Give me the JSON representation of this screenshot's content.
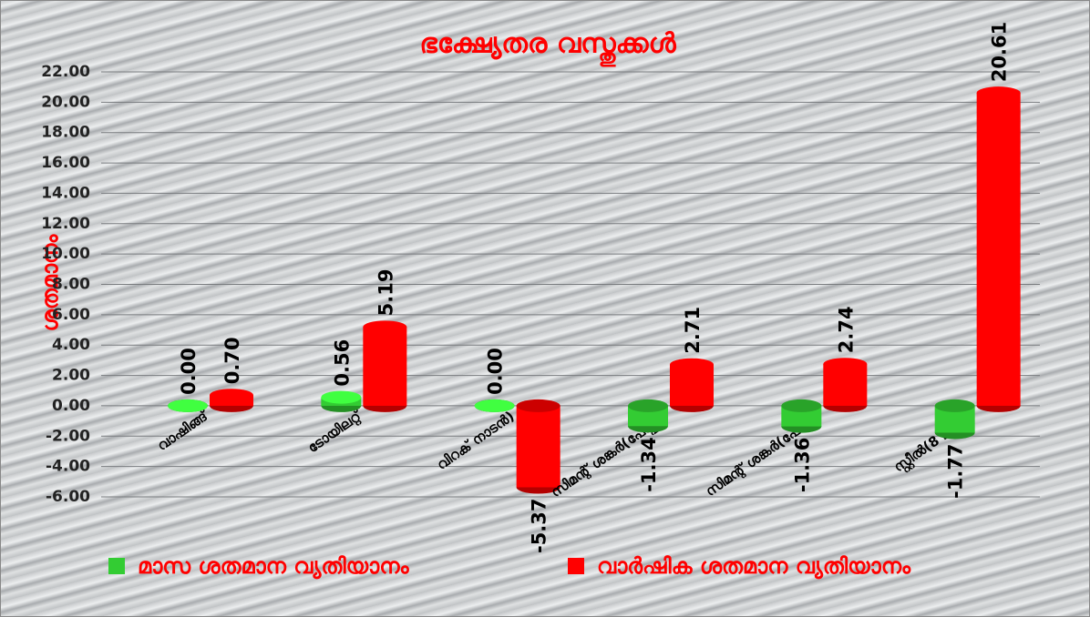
{
  "chart_data": {
    "type": "bar3d",
    "title": "ഭക്ഷ്യേതര വസ്തുക്കൾ",
    "y_label": "ശതമാനം",
    "categories": [
      "വാഷിങ്ങ്",
      "ടോയിലറ്റ്",
      "വിറക് നാടൻ)",
      "സിമന്റ് ശങ്കർ(പേപ്പർ)",
      "സിമന്റ് ശങ്കർ(പോളി)",
      "സ്റ്റീൽ(8 മി. മീ)"
    ],
    "series": [
      {
        "name": "മാസ ശതമാന വ്യതിയാനം",
        "color": "#33cc33",
        "values": [
          0,
          0.56,
          0,
          -1.34,
          -1.36,
          -1.77
        ],
        "value_labels": [
          "0.00",
          "0.56",
          "0.00",
          "-1.34",
          "-1.36",
          "-1.77"
        ]
      },
      {
        "name": "വാർഷിക  ശതമാന വ്യതിയാനം",
        "color": "#ff0000",
        "values": [
          0.7,
          5.19,
          -5.37,
          2.71,
          2.74,
          20.61
        ],
        "value_labels": [
          "0.70",
          "5.19",
          "-5.37",
          "2.71",
          "2.74",
          "20.61"
        ]
      }
    ],
    "ylim": [
      -6,
      22
    ],
    "yticks": [
      {
        "value": -6,
        "label": "-6.00"
      },
      {
        "value": -4,
        "label": "-4.00"
      },
      {
        "value": -2,
        "label": "-2.00"
      },
      {
        "value": 0,
        "label": "0.00"
      },
      {
        "value": 2,
        "label": "2.00"
      },
      {
        "value": 4,
        "label": "4.00"
      },
      {
        "value": 6,
        "label": "6.00"
      },
      {
        "value": 8,
        "label": "8.00"
      },
      {
        "value": 10,
        "label": "10.00"
      },
      {
        "value": 12,
        "label": "12.00"
      },
      {
        "value": 14,
        "label": "14.00"
      },
      {
        "value": 16,
        "label": "16.00"
      },
      {
        "value": 18,
        "label": "18.00"
      },
      {
        "value": 20,
        "label": "20.00"
      },
      {
        "value": 22,
        "label": "22.00"
      }
    ],
    "grid": true
  }
}
